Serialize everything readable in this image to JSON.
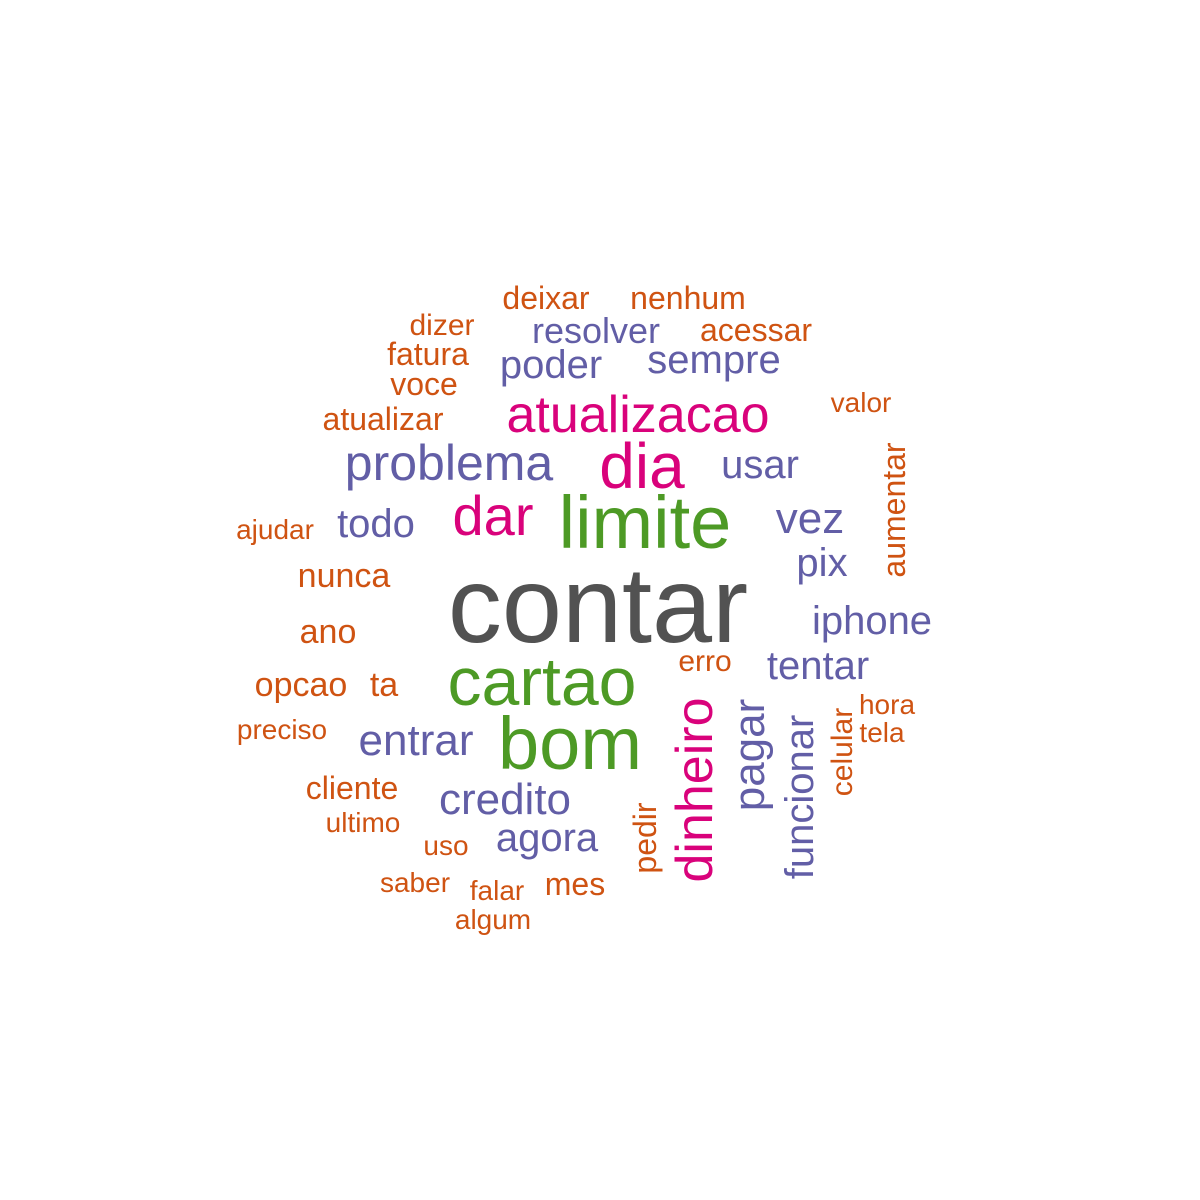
{
  "palette": {
    "dark": "#525252",
    "green": "#4d9a25",
    "magenta": "#d9027b",
    "purple": "#625ea6",
    "orange": "#cf5312"
  },
  "words": [
    {
      "text": "contar",
      "color": "dark"
    },
    {
      "text": "limite",
      "color": "green"
    },
    {
      "text": "cartao",
      "color": "green"
    },
    {
      "text": "bom",
      "color": "green"
    },
    {
      "text": "dia",
      "color": "magenta"
    },
    {
      "text": "atualizacao",
      "color": "magenta"
    },
    {
      "text": "dar",
      "color": "magenta"
    },
    {
      "text": "dinheiro",
      "color": "magenta"
    },
    {
      "text": "problema",
      "color": "purple"
    },
    {
      "text": "credito",
      "color": "purple"
    },
    {
      "text": "entrar",
      "color": "purple"
    },
    {
      "text": "pagar",
      "color": "purple"
    },
    {
      "text": "poder",
      "color": "purple"
    },
    {
      "text": "sempre",
      "color": "purple"
    },
    {
      "text": "resolver",
      "color": "purple"
    },
    {
      "text": "usar",
      "color": "purple"
    },
    {
      "text": "vez",
      "color": "purple"
    },
    {
      "text": "todo",
      "color": "purple"
    },
    {
      "text": "pix",
      "color": "purple"
    },
    {
      "text": "iphone",
      "color": "purple"
    },
    {
      "text": "tentar",
      "color": "purple"
    },
    {
      "text": "agora",
      "color": "purple"
    },
    {
      "text": "funcionar",
      "color": "purple"
    },
    {
      "text": "deixar",
      "color": "orange"
    },
    {
      "text": "nenhum",
      "color": "orange"
    },
    {
      "text": "acessar",
      "color": "orange"
    },
    {
      "text": "dizer",
      "color": "orange"
    },
    {
      "text": "fatura",
      "color": "orange"
    },
    {
      "text": "voce",
      "color": "orange"
    },
    {
      "text": "atualizar",
      "color": "orange"
    },
    {
      "text": "valor",
      "color": "orange"
    },
    {
      "text": "aumentar",
      "color": "orange"
    },
    {
      "text": "ajudar",
      "color": "orange"
    },
    {
      "text": "nunca",
      "color": "orange"
    },
    {
      "text": "ano",
      "color": "orange"
    },
    {
      "text": "opcao",
      "color": "orange"
    },
    {
      "text": "ta",
      "color": "orange"
    },
    {
      "text": "preciso",
      "color": "orange"
    },
    {
      "text": "erro",
      "color": "orange"
    },
    {
      "text": "hora",
      "color": "orange"
    },
    {
      "text": "tela",
      "color": "orange"
    },
    {
      "text": "celular",
      "color": "orange"
    },
    {
      "text": "cliente",
      "color": "orange"
    },
    {
      "text": "ultimo",
      "color": "orange"
    },
    {
      "text": "uso",
      "color": "orange"
    },
    {
      "text": "pedir",
      "color": "orange"
    },
    {
      "text": "saber",
      "color": "orange"
    },
    {
      "text": "falar",
      "color": "orange"
    },
    {
      "text": "mes",
      "color": "orange"
    },
    {
      "text": "algum",
      "color": "orange"
    }
  ]
}
